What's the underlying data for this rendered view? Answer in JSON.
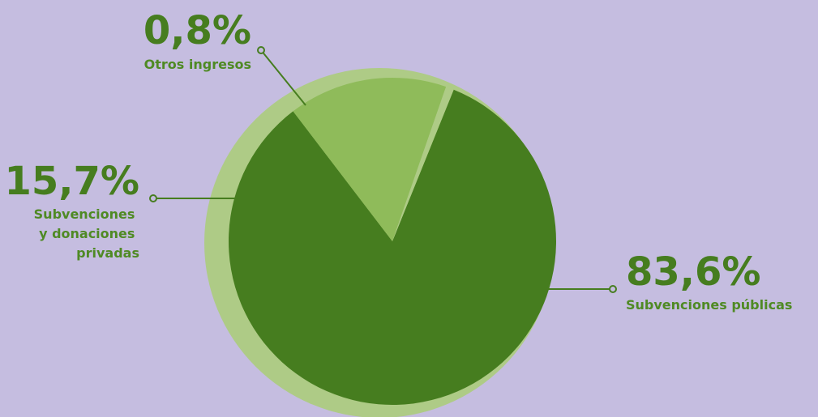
{
  "chart_data": {
    "type": "pie",
    "title": "",
    "slices": [
      {
        "value": 83.6,
        "value_label": "83,6%",
        "label_lines": [
          "Subvenciones públicas"
        ],
        "color": "#467d1f"
      },
      {
        "value": 15.7,
        "value_label": "15,7%",
        "label_lines": [
          "Subvenciones",
          "y donaciones",
          "privadas"
        ],
        "color": "#8fbb5a"
      },
      {
        "value": 0.8,
        "value_label": "0,8%",
        "label_lines": [
          "Otros ingresos"
        ],
        "color": "#aecb86"
      }
    ],
    "start_angle_deg": 22,
    "direction": "clockwise",
    "legend": "none"
  },
  "colors": {
    "background": "#c5bde0",
    "ring": "#aecb86",
    "text": "#467d1f"
  }
}
